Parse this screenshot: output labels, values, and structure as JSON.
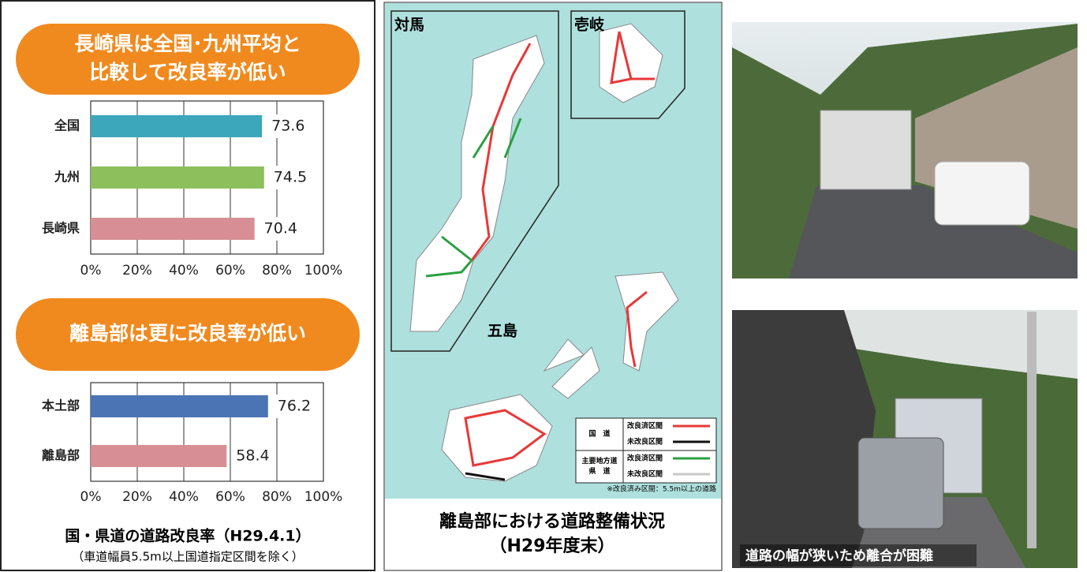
{
  "chart_data": [
    {
      "type": "bar",
      "orientation": "horizontal",
      "title": [
        "長崎県は全国･九州平均と",
        "比較して改良率が低い"
      ],
      "categories": [
        "全国",
        "九州",
        "長崎県"
      ],
      "values": [
        73.6,
        74.5,
        70.4
      ],
      "colors": [
        "#3ca7ba",
        "#8dbf5c",
        "#d78e95"
      ],
      "xlim": [
        0,
        100
      ],
      "xticks": [
        {
          "value": 0,
          "label": "0%"
        },
        {
          "value": 20,
          "label": "20%"
        },
        {
          "value": 40,
          "label": "40%"
        },
        {
          "value": 60,
          "label": "60%"
        },
        {
          "value": 80,
          "label": "80%"
        },
        {
          "value": 100,
          "label": "100%"
        }
      ],
      "grid": true
    },
    {
      "type": "bar",
      "orientation": "horizontal",
      "title": [
        "離島部は更に改良率が低い"
      ],
      "categories": [
        "本土部",
        "離島部"
      ],
      "values": [
        76.2,
        58.4
      ],
      "colors": [
        "#4b74b5",
        "#d78e95"
      ],
      "xlim": [
        0,
        100
      ],
      "xticks": [
        {
          "value": 0,
          "label": "0%"
        },
        {
          "value": 20,
          "label": "20%"
        },
        {
          "value": 40,
          "label": "40%"
        },
        {
          "value": 60,
          "label": "60%"
        },
        {
          "value": 80,
          "label": "80%"
        },
        {
          "value": 100,
          "label": "100%"
        }
      ],
      "grid": true
    }
  ],
  "left_footer": {
    "title": "国・県道の道路改良率（H29.4.1）",
    "note": "（車道幅員5.5m以上国道指定区間を除く）"
  },
  "map": {
    "labels": {
      "tsushima": "対馬",
      "iki": "壱岐",
      "goto": "五島"
    },
    "legend": [
      {
        "group": [
          "国　道"
        ],
        "items": [
          "改良済区間",
          "未改良区間"
        ]
      },
      {
        "group": [
          "主要地方道",
          "県　道"
        ],
        "items": [
          "改良済区間",
          "未改良区間"
        ]
      }
    ],
    "note": "※改良済み区間：5.5m以上の道路",
    "caption": [
      "離島部における道路整備状況",
      "（H29年度末）"
    ]
  },
  "photo_caption": "道路の幅が狭いため離合が困難"
}
